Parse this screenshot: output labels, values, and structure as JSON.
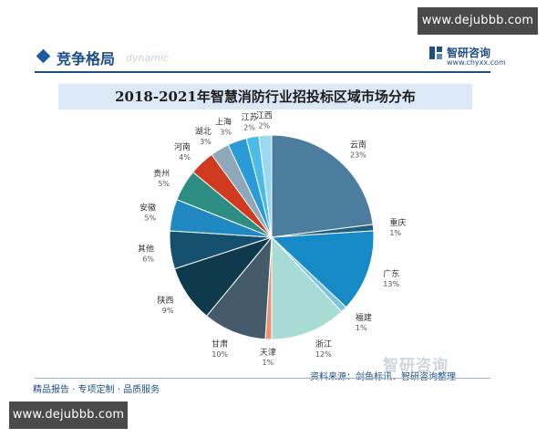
{
  "header": {
    "section_title": "竞争格局",
    "section_subtitle": "dynamic",
    "brand_name": "智研咨询",
    "brand_site": "www.chyxx.com"
  },
  "links": {
    "top": "www.dejubbb.com",
    "bottom": "www.dejubbb.com"
  },
  "watermark": "智研咨询",
  "footer": {
    "left": "精品报告 · 专项定制 · 品质服务",
    "source": "资料来源：剑鱼标讯、智研咨询整理"
  },
  "colors": {
    "accent": "#1d4f86",
    "title_band": "#dbe8f5"
  },
  "chart_data": {
    "type": "pie",
    "title": "2018-2021年智慧消防行业招投标区域市场分布",
    "slices": [
      {
        "label": "云南",
        "value": 23,
        "value_label": "23%",
        "color": "#4d7d9e"
      },
      {
        "label": "重庆",
        "value": 1,
        "value_label": "1%",
        "color": "#1f5f86"
      },
      {
        "label": "广东",
        "value": 13,
        "value_label": "13%",
        "color": "#1689c7"
      },
      {
        "label": "福建",
        "value": 1,
        "value_label": "1%",
        "color": "#7cc4e4"
      },
      {
        "label": "浙江",
        "value": 12,
        "value_label": "12%",
        "color": "#a9dbd5"
      },
      {
        "label": "天津",
        "value": 1,
        "value_label": "1%",
        "color": "#e8917b"
      },
      {
        "label": "甘肃",
        "value": 10,
        "value_label": "10%",
        "color": "#435a6a"
      },
      {
        "label": "陕西",
        "value": 9,
        "value_label": "9%",
        "color": "#0f3a4d"
      },
      {
        "label": "其他",
        "value": 6,
        "value_label": "6%",
        "color": "#15506e"
      },
      {
        "label": "安徽",
        "value": 5,
        "value_label": "5%",
        "color": "#2189c2"
      },
      {
        "label": "贵州",
        "value": 5,
        "value_label": "5%",
        "color": "#2e8d82"
      },
      {
        "label": "河南",
        "value": 4,
        "value_label": "4%",
        "color": "#d03a1f"
      },
      {
        "label": "湖北",
        "value": 3,
        "value_label": "3%",
        "color": "#8fa8b9"
      },
      {
        "label": "上海",
        "value": 3,
        "value_label": "3%",
        "color": "#2a9bd6"
      },
      {
        "label": "江苏",
        "value": 2,
        "value_label": "2%",
        "color": "#4cbbe8"
      },
      {
        "label": "江西",
        "value": 2,
        "value_label": "2%",
        "color": "#9ad8f2"
      }
    ]
  }
}
